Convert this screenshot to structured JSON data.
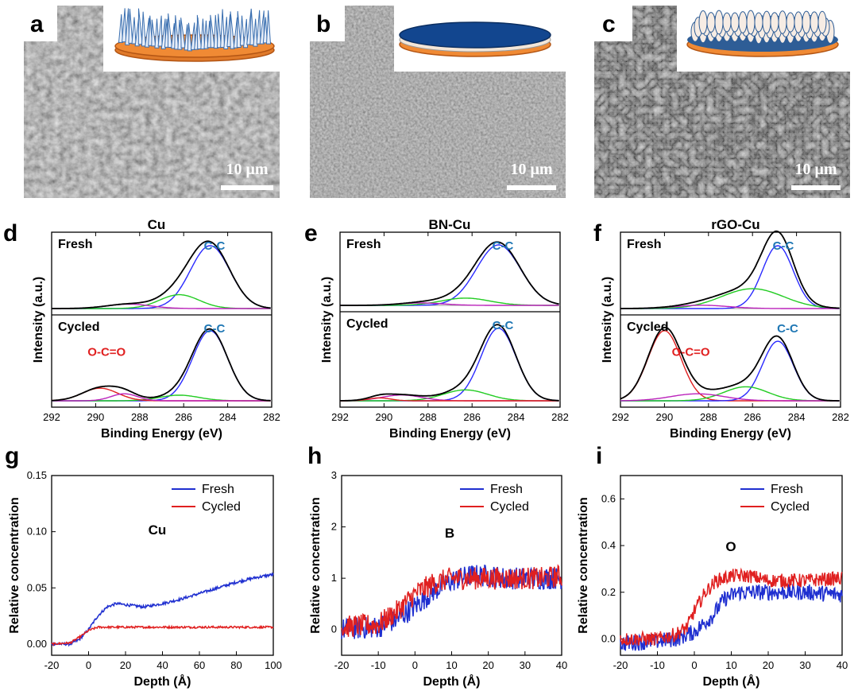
{
  "sem_panels": [
    {
      "label": "a",
      "scale_text": "10 μm",
      "base": "#6f6f6f",
      "tone": "dark"
    },
    {
      "label": "b",
      "scale_text": "10 μm",
      "base": "#8a8a8a",
      "tone": "flat"
    },
    {
      "label": "c",
      "scale_text": "10 μm",
      "base": "#7a7a7a",
      "tone": "flake"
    }
  ],
  "chart_data": [
    {
      "type": "line",
      "panel": "d",
      "title": "Cu",
      "xlabel": "Binding Energy (eV)",
      "ylabel": "Intensity (a.u.)",
      "xlim": [
        292,
        282
      ],
      "xticks": [
        292,
        290,
        288,
        286,
        284,
        282
      ],
      "subplots": [
        {
          "label": "Fresh",
          "annotations": [
            {
              "text": "C-C",
              "x": 284.6,
              "color": "#1f77b4"
            }
          ],
          "peaks": [
            {
              "name": "C-C",
              "center": 284.8,
              "amp": 1.0,
              "width": 0.9,
              "color": "#2a2aff"
            },
            {
              "name": "C-O",
              "center": 286.2,
              "amp": 0.22,
              "width": 0.9,
              "color": "#22cc22"
            },
            {
              "name": "O-C=O",
              "center": 288.5,
              "amp": 0.07,
              "width": 1.0,
              "color": "#bb22bb"
            }
          ]
        },
        {
          "label": "Cycled",
          "annotations": [
            {
              "text": "C-C",
              "x": 284.6,
              "color": "#1f77b4"
            },
            {
              "text": "O-C=O",
              "x": 289.5,
              "color": "#e02020"
            }
          ],
          "peaks": [
            {
              "name": "C-C",
              "center": 284.8,
              "amp": 1.0,
              "width": 0.8,
              "color": "#2a2aff"
            },
            {
              "name": "C-O",
              "center": 286.2,
              "amp": 0.08,
              "width": 0.9,
              "color": "#22cc22"
            },
            {
              "name": "O-C=O",
              "center": 289.8,
              "amp": 0.18,
              "width": 0.8,
              "color": "#e02020"
            },
            {
              "name": "C=O",
              "center": 288.7,
              "amp": 0.1,
              "width": 0.6,
              "color": "#bb22bb"
            }
          ]
        }
      ]
    },
    {
      "type": "line",
      "panel": "e",
      "title": "BN-Cu",
      "xlabel": "Binding Energy (eV)",
      "ylabel": "Intensity (a.u.)",
      "xlim": [
        292,
        282
      ],
      "xticks": [
        292,
        290,
        288,
        286,
        284,
        282
      ],
      "subplots": [
        {
          "label": "Fresh",
          "annotations": [
            {
              "text": "C-C",
              "x": 284.6,
              "color": "#1f77b4"
            }
          ],
          "peaks": [
            {
              "name": "C-C",
              "center": 284.8,
              "amp": 1.0,
              "width": 1.0,
              "color": "#2a2aff"
            },
            {
              "name": "C-O",
              "center": 286.3,
              "amp": 0.12,
              "width": 1.1,
              "color": "#22cc22"
            },
            {
              "name": "O-C=O",
              "center": 288.3,
              "amp": 0.04,
              "width": 1.0,
              "color": "#bb22bb"
            }
          ]
        },
        {
          "label": "Cycled",
          "annotations": [
            {
              "text": "C-C",
              "x": 284.6,
              "color": "#1f77b4"
            }
          ],
          "peaks": [
            {
              "name": "C-C",
              "center": 284.8,
              "amp": 1.0,
              "width": 0.8,
              "color": "#2a2aff"
            },
            {
              "name": "C-O",
              "center": 286.3,
              "amp": 0.15,
              "width": 1.0,
              "color": "#22cc22"
            },
            {
              "name": "O-C=O",
              "center": 289.2,
              "amp": 0.08,
              "width": 0.9,
              "color": "#bb22bb"
            },
            {
              "name": "C=O",
              "center": 290.2,
              "amp": 0.04,
              "width": 0.5,
              "color": "#e02020"
            }
          ]
        }
      ]
    },
    {
      "type": "line",
      "panel": "f",
      "title": "rGO-Cu",
      "xlabel": "Binding Energy (eV)",
      "ylabel": "Intensity (a.u.)",
      "xlim": [
        292,
        282
      ],
      "xticks": [
        292,
        290,
        288,
        286,
        284,
        282
      ],
      "subplots": [
        {
          "label": "Fresh",
          "annotations": [
            {
              "text": "C-C",
              "x": 284.6,
              "color": "#1f77b4"
            }
          ],
          "peaks": [
            {
              "name": "C-C",
              "center": 284.85,
              "amp": 0.95,
              "width": 0.7,
              "color": "#2a2aff"
            },
            {
              "name": "C-O",
              "center": 286.0,
              "amp": 0.3,
              "width": 1.4,
              "color": "#22cc22"
            },
            {
              "name": "O-C=O",
              "center": 288.3,
              "amp": 0.05,
              "width": 1.2,
              "color": "#bb22bb"
            }
          ]
        },
        {
          "label": "Cycled",
          "annotations": [
            {
              "text": "O-C=O",
              "x": 288.8,
              "color": "#e02020"
            },
            {
              "text": "C-C",
              "x": 284.4,
              "color": "#1f77b4"
            }
          ],
          "peaks": [
            {
              "name": "O-C=O",
              "center": 290.0,
              "amp": 1.0,
              "width": 0.75,
              "color": "#e02020"
            },
            {
              "name": "C-C",
              "center": 284.85,
              "amp": 0.85,
              "width": 0.7,
              "color": "#2a2aff"
            },
            {
              "name": "C-O",
              "center": 286.3,
              "amp": 0.2,
              "width": 1.0,
              "color": "#22cc22"
            },
            {
              "name": "C=O",
              "center": 288.5,
              "amp": 0.1,
              "width": 1.2,
              "color": "#bb22bb"
            }
          ]
        }
      ]
    },
    {
      "type": "line",
      "panel": "g",
      "element": "Cu",
      "xlabel": "Depth (Å)",
      "ylabel": "Relative concentration",
      "xlim": [
        -20,
        100
      ],
      "ylim": [
        -0.01,
        0.15
      ],
      "xticks": [
        -20,
        0,
        20,
        40,
        60,
        80,
        100
      ],
      "yticks": [
        "0.00",
        "0.05",
        "0.10",
        "0.15"
      ],
      "ytick_values": [
        0.0,
        0.05,
        0.1,
        0.15
      ],
      "legend": [
        "Fresh",
        "Cycled"
      ],
      "series": [
        {
          "name": "Fresh",
          "color": "#1f2fd0",
          "noise": 0.0012,
          "x": [
            -20,
            -10,
            -5,
            0,
            5,
            10,
            15,
            20,
            30,
            40,
            50,
            60,
            70,
            80,
            90,
            100
          ],
          "y": [
            0.0,
            0.0,
            0.004,
            0.013,
            0.025,
            0.033,
            0.036,
            0.035,
            0.033,
            0.036,
            0.04,
            0.045,
            0.05,
            0.055,
            0.059,
            0.062
          ]
        },
        {
          "name": "Cycled",
          "color": "#e02020",
          "noise": 0.0009,
          "x": [
            -20,
            -10,
            -5,
            0,
            5,
            10,
            20,
            40,
            60,
            80,
            100
          ],
          "y": [
            0.0,
            0.001,
            0.006,
            0.012,
            0.015,
            0.015,
            0.015,
            0.015,
            0.015,
            0.015,
            0.015
          ]
        }
      ]
    },
    {
      "type": "line",
      "panel": "h",
      "element": "B",
      "xlabel": "Depth (Å)",
      "ylabel": "Relative concentration",
      "xlim": [
        -20,
        40
      ],
      "ylim": [
        -0.5,
        3
      ],
      "xticks": [
        -20,
        -10,
        0,
        10,
        20,
        30,
        40
      ],
      "yticks": [
        "0",
        "1",
        "2",
        "3"
      ],
      "ytick_values": [
        0,
        1,
        2,
        3
      ],
      "legend": [
        "Fresh",
        "Cycled"
      ],
      "series": [
        {
          "name": "Fresh",
          "color": "#1f2fd0",
          "noise": 0.22,
          "x": [
            -20,
            -10,
            -5,
            0,
            5,
            10,
            15,
            20,
            25,
            30,
            35,
            40
          ],
          "y": [
            0.0,
            0.05,
            0.2,
            0.45,
            0.75,
            0.95,
            1.05,
            1.05,
            1.0,
            1.0,
            1.0,
            1.0
          ]
        },
        {
          "name": "Cycled",
          "color": "#e02020",
          "noise": 0.22,
          "x": [
            -20,
            -10,
            -5,
            0,
            5,
            10,
            15,
            20,
            25,
            30,
            35,
            40
          ],
          "y": [
            0.05,
            0.1,
            0.35,
            0.7,
            0.9,
            1.0,
            1.0,
            1.0,
            1.0,
            1.0,
            1.0,
            1.05
          ]
        }
      ]
    },
    {
      "type": "line",
      "panel": "i",
      "element": "O",
      "xlabel": "Depth (Å)",
      "ylabel": "Relative concentration",
      "xlim": [
        -20,
        40
      ],
      "ylim": [
        -0.07,
        0.7
      ],
      "xticks": [
        -20,
        -10,
        0,
        10,
        20,
        30,
        40
      ],
      "yticks": [
        "0.0",
        "0.2",
        "0.4",
        "0.6"
      ],
      "ytick_values": [
        0.0,
        0.2,
        0.4,
        0.6
      ],
      "legend": [
        "Fresh",
        "Cycled"
      ],
      "series": [
        {
          "name": "Fresh",
          "color": "#1f2fd0",
          "noise": 0.035,
          "x": [
            -20,
            -10,
            -5,
            0,
            5,
            8,
            12,
            20,
            30,
            40
          ],
          "y": [
            -0.02,
            -0.01,
            0.0,
            0.03,
            0.1,
            0.17,
            0.2,
            0.2,
            0.2,
            0.19
          ]
        },
        {
          "name": "Cycled",
          "color": "#e02020",
          "noise": 0.03,
          "x": [
            -20,
            -10,
            -5,
            -2,
            0,
            3,
            6,
            10,
            15,
            20,
            30,
            40
          ],
          "y": [
            0.0,
            0.0,
            0.02,
            0.05,
            0.12,
            0.2,
            0.25,
            0.27,
            0.27,
            0.25,
            0.25,
            0.26
          ]
        }
      ]
    }
  ]
}
